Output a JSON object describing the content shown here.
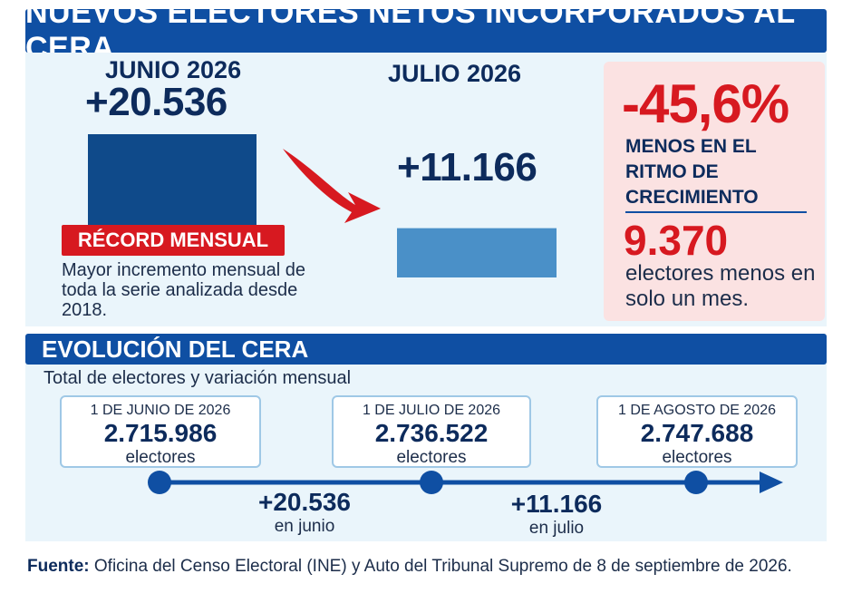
{
  "header": {
    "title": "NUEVOS ELECTORES NETOS INCORPORADOS AL CERA"
  },
  "chart_data": [
    {
      "type": "bar",
      "categories": [
        "JUNIO 2026",
        "JULIO 2026"
      ],
      "values": [
        20536,
        11166
      ],
      "value_labels": [
        "+20.536",
        "+11.166"
      ],
      "colors": [
        "#0f4a8a",
        "#4a90c8"
      ]
    },
    {
      "type": "line",
      "title": "EVOLUCIÓN DEL CERA",
      "subtitle": "Total de electores y variación mensual",
      "points": [
        {
          "date": "1 DE JUNIO DE 2026",
          "value": 2715986,
          "value_label": "2.715.986",
          "unit": "electores"
        },
        {
          "date": "1 DE JULIO DE 2026",
          "value": 2736522,
          "value_label": "2.736.522",
          "unit": "electores"
        },
        {
          "date": "1 DE AGOSTO DE 2026",
          "value": 2747688,
          "value_label": "2.747.688",
          "unit": "electores"
        }
      ],
      "deltas": [
        {
          "value": 20536,
          "value_label": "+20.536",
          "label": "en junio"
        },
        {
          "value": 11166,
          "value_label": "+11.166",
          "label": "en julio"
        }
      ]
    }
  ],
  "record": {
    "badge": "RÉCORD MENSUAL",
    "description": "Mayor incremento mensual de toda la serie analizada desde 2018."
  },
  "change": {
    "percent": "-45,6%",
    "percent_desc": "MENOS EN EL RITMO DE CRECIMIENTO",
    "diff": "9.370",
    "diff_desc": "electores menos en solo un mes."
  },
  "source": {
    "label": "Fuente:",
    "text": "Oficina del Censo Electoral (INE) y Auto del Tribunal Supremo de 8 de septiembre de 2026."
  },
  "colors": {
    "banner": "#0f4fa3",
    "accent_red": "#d71920",
    "panel": "#eaf5fb",
    "highlight_box": "#fbe2e2"
  }
}
